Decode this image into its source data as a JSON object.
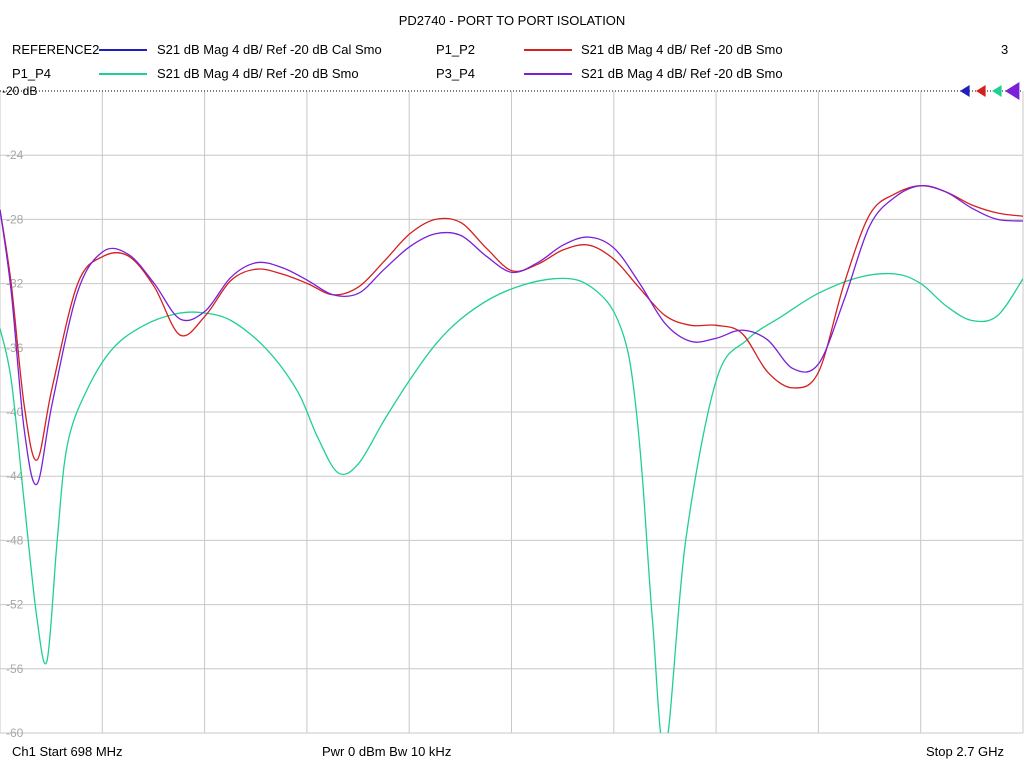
{
  "chart_data": {
    "type": "line",
    "title": "PD2740 - PORT TO PORT ISOLATION",
    "xlabel": "",
    "ylabel": "",
    "x_start_mhz": 698,
    "x_stop_mhz": 2700,
    "ylim": [
      -60,
      -20
    ],
    "y_ticks": [
      "-20 dB",
      "-24",
      "-28",
      "-32",
      "-36",
      "-40",
      "-44",
      "-48",
      "-52",
      "-56",
      "-60"
    ],
    "grid": true,
    "legend_placement": "top",
    "marker_label": "3",
    "series": [
      {
        "name": "REFERENCE2",
        "trace_label": "S21  dB Mag  4 dB/ Ref -20 dB  Cal Smo",
        "color": "#1f1fbf",
        "x": [
          698,
          800,
          900,
          1000,
          1100,
          1200,
          1300,
          1400,
          1500,
          1600,
          1700,
          1800,
          1900,
          2000,
          2100,
          2200,
          2300,
          2400,
          2500,
          2600,
          2700
        ],
        "y": [
          -27.5,
          -42.5,
          -30.2,
          -30.5,
          -34.4,
          -30.8,
          -31.4,
          -32.5,
          -29.6,
          -28.5,
          -31.3,
          -29.4,
          -30.0,
          -34.2,
          -34.2,
          -37.5,
          -33.5,
          -26.4,
          -25.9,
          -26.7,
          -27.9
        ],
        "visible": false
      },
      {
        "name": "P1_P2",
        "trace_label": "S21  dB Mag  4 dB/ Ref -20 dB  Smo",
        "color": "#d42020",
        "x": [
          698,
          720,
          745,
          770,
          800,
          850,
          900,
          950,
          1000,
          1050,
          1100,
          1150,
          1200,
          1250,
          1300,
          1350,
          1400,
          1450,
          1500,
          1550,
          1600,
          1650,
          1700,
          1750,
          1800,
          1850,
          1900,
          1950,
          2000,
          2050,
          2100,
          2150,
          2200,
          2250,
          2300,
          2350,
          2400,
          2450,
          2500,
          2550,
          2600,
          2650,
          2700
        ],
        "y": [
          -27.4,
          -32.0,
          -39.5,
          -43.0,
          -38.5,
          -32.0,
          -30.3,
          -30.3,
          -32.2,
          -35.2,
          -34.0,
          -31.8,
          -31.1,
          -31.4,
          -32.0,
          -32.7,
          -32.2,
          -30.6,
          -28.9,
          -28.0,
          -28.2,
          -29.8,
          -31.2,
          -30.8,
          -29.9,
          -29.6,
          -30.5,
          -32.3,
          -34.0,
          -34.6,
          -34.6,
          -35.1,
          -37.5,
          -38.5,
          -37.5,
          -32.0,
          -27.7,
          -26.4,
          -25.9,
          -26.3,
          -27.1,
          -27.6,
          -27.8
        ]
      },
      {
        "name": "P1_P4",
        "trace_label": "S21  dB Mag  4 dB/ Ref -20 dB  Smo",
        "color": "#20d090",
        "x": [
          698,
          720,
          745,
          770,
          790,
          810,
          830,
          870,
          920,
          980,
          1040,
          1090,
          1150,
          1220,
          1280,
          1320,
          1360,
          1400,
          1450,
          1500,
          1550,
          1600,
          1660,
          1720,
          1780,
          1830,
          1870,
          1900,
          1925,
          1940,
          1955,
          1975,
          2000,
          2040,
          2100,
          2160,
          2230,
          2300,
          2380,
          2450,
          2500,
          2550,
          2600,
          2650,
          2700
        ],
        "y": [
          -34.8,
          -38.0,
          -45.5,
          -52.8,
          -55.5,
          -48.0,
          -42.0,
          -38.5,
          -36.0,
          -34.6,
          -33.9,
          -33.8,
          -34.3,
          -36.1,
          -38.7,
          -41.6,
          -43.8,
          -43.2,
          -40.5,
          -38.0,
          -35.8,
          -34.2,
          -32.9,
          -32.1,
          -31.7,
          -31.8,
          -32.6,
          -33.8,
          -36.0,
          -39.0,
          -44.0,
          -53.0,
          -61.0,
          -48.0,
          -38.0,
          -35.5,
          -34.0,
          -32.6,
          -31.6,
          -31.4,
          -32.0,
          -33.4,
          -34.3,
          -34.0,
          -31.7
        ]
      },
      {
        "name": "P3_P4",
        "trace_label": "S21  dB Mag  4 dB/ Ref -20 dB  Smo",
        "color": "#7a20d8",
        "x": [
          698,
          720,
          745,
          770,
          800,
          850,
          900,
          950,
          1000,
          1050,
          1100,
          1150,
          1200,
          1250,
          1300,
          1350,
          1400,
          1450,
          1500,
          1550,
          1600,
          1650,
          1700,
          1750,
          1800,
          1850,
          1900,
          1950,
          2000,
          2050,
          2100,
          2150,
          2200,
          2250,
          2300,
          2350,
          2400,
          2450,
          2500,
          2550,
          2600,
          2650,
          2700
        ],
        "y": [
          -27.4,
          -32.5,
          -41.0,
          -44.5,
          -39.5,
          -32.5,
          -30.0,
          -30.2,
          -32.0,
          -34.2,
          -33.7,
          -31.6,
          -30.7,
          -31.0,
          -31.8,
          -32.7,
          -32.6,
          -31.1,
          -29.7,
          -28.9,
          -29.0,
          -30.3,
          -31.3,
          -30.7,
          -29.6,
          -29.1,
          -29.8,
          -32.0,
          -34.5,
          -35.6,
          -35.4,
          -34.9,
          -35.5,
          -37.3,
          -37.0,
          -33.0,
          -28.4,
          -26.6,
          -25.9,
          -26.3,
          -27.3,
          -28.0,
          -28.1
        ]
      }
    ]
  },
  "footer": {
    "start": "Ch1  Start  698 MHz",
    "power": "Pwr  0 dBm  Bw  10 kHz",
    "stop": "Stop  2.7 GHz"
  }
}
